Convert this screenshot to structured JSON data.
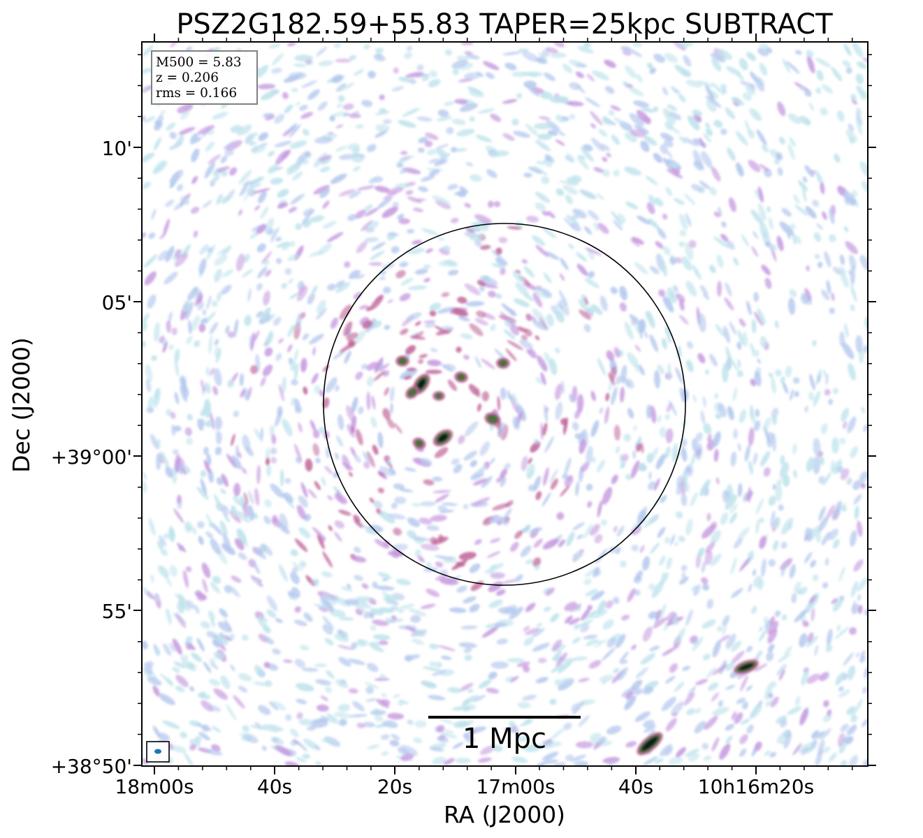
{
  "chart_data": {
    "type": "heatmap",
    "title": "PSZ2G182.59+55.83 TAPER=25kpc SUBTRACT",
    "xlabel": "RA (J2000)",
    "ylabel": "Dec (J2000)",
    "x_tick_labels": [
      "18m00s",
      "40s",
      "20s",
      "17m00s",
      "40s",
      "10h16m20s"
    ],
    "y_tick_labels": [
      "10'",
      "05'",
      "+39°00'",
      "55'",
      "+38°50'"
    ],
    "info_box": {
      "lines": [
        "M500 = 5.83",
        "z = 0.206",
        "rms = 0.166"
      ],
      "placement": "top-left"
    },
    "scale_bar": {
      "label": "1 Mpc",
      "length_mpc": 1
    },
    "circle": {
      "description": "R500 aperture centred on cluster"
    },
    "beam_marker": {
      "placement": "bottom-left"
    },
    "colormap": {
      "colors": [
        "#ffffff",
        "#bfe3ec",
        "#b4c8ee",
        "#c79be0",
        "#c0669a",
        "#8a4a3e",
        "#3a6e2a",
        "#0b1a1a"
      ]
    }
  }
}
